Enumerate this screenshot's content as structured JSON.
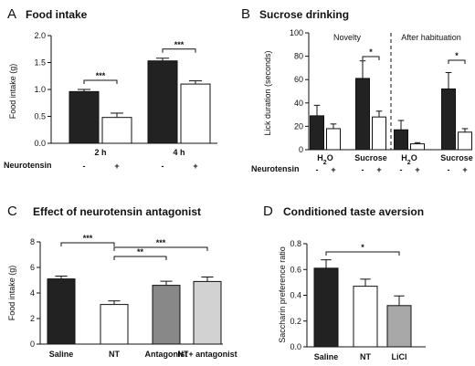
{
  "chart_data": [
    {
      "panel": "A",
      "type": "bar",
      "title": "Food intake",
      "ylabel": "Food intake (g)",
      "ylim": [
        0,
        2.0
      ],
      "yticks": [
        "0.0",
        "0.5",
        "1.0",
        "1.5",
        "2.0"
      ],
      "categories": [
        "2 h",
        "4 h"
      ],
      "series": [
        {
          "values": [
            0.96,
            1.53
          ],
          "errors": [
            0.04,
            0.05
          ],
          "color": "#222222"
        },
        {
          "values": [
            0.48,
            1.1
          ],
          "errors": [
            0.08,
            0.06
          ],
          "color": "#ffffff"
        }
      ],
      "factor_label": "Neurotensin",
      "factor_levels": [
        "-",
        "+",
        "-",
        "+"
      ],
      "significance": [
        "***",
        "***"
      ]
    },
    {
      "panel": "B",
      "type": "bar",
      "title": "Sucrose drinking",
      "ylabel": "Lick duration (seconds)",
      "ylim": [
        0,
        100
      ],
      "yticks": [
        "0",
        "20",
        "40",
        "60",
        "80",
        "100"
      ],
      "sections": [
        "Novelty",
        "After habituation"
      ],
      "categories": [
        "H2O",
        "Sucrose",
        "H2O",
        "Sucrose"
      ],
      "series": [
        {
          "values": [
            29,
            61,
            17,
            52
          ],
          "errors": [
            9,
            15,
            8,
            14
          ],
          "color": "#222222"
        },
        {
          "values": [
            18,
            28,
            5,
            15
          ],
          "errors": [
            4,
            5,
            1,
            3
          ],
          "color": "#ffffff"
        }
      ],
      "factor_label": "Neurotensin",
      "factor_levels": [
        "-",
        "+",
        "-",
        "+",
        "-",
        "+",
        "-",
        "+"
      ],
      "significance": [
        "*",
        "*"
      ]
    },
    {
      "panel": "C",
      "type": "bar",
      "title": "Effect of neurotensin antagonist",
      "ylabel": "Food intake (g)",
      "ylim": [
        0,
        8
      ],
      "yticks": [
        "0",
        "2",
        "4",
        "6",
        "8"
      ],
      "categories": [
        "Saline",
        "NT",
        "Antagonist",
        "NT+ antagonist"
      ],
      "values": [
        5.1,
        3.1,
        4.6,
        4.9
      ],
      "errors": [
        0.22,
        0.28,
        0.32,
        0.35
      ],
      "colors": [
        "#222222",
        "#ffffff",
        "#888888",
        "#d2d2d2"
      ],
      "significance": [
        "***",
        "**",
        "***"
      ]
    },
    {
      "panel": "D",
      "type": "bar",
      "title": "Conditioned taste aversion",
      "ylabel": "Saccharin preference ratio",
      "ylim": [
        0,
        0.8
      ],
      "yticks": [
        "0.0",
        "0.2",
        "0.4",
        "0.6",
        "0.8"
      ],
      "categories": [
        "Saline",
        "NT",
        "LiCl"
      ],
      "values": [
        0.61,
        0.47,
        0.32
      ],
      "errors": [
        0.065,
        0.055,
        0.075
      ],
      "colors": [
        "#222222",
        "#ffffff",
        "#a8a8a8"
      ],
      "significance": [
        "*"
      ]
    }
  ]
}
